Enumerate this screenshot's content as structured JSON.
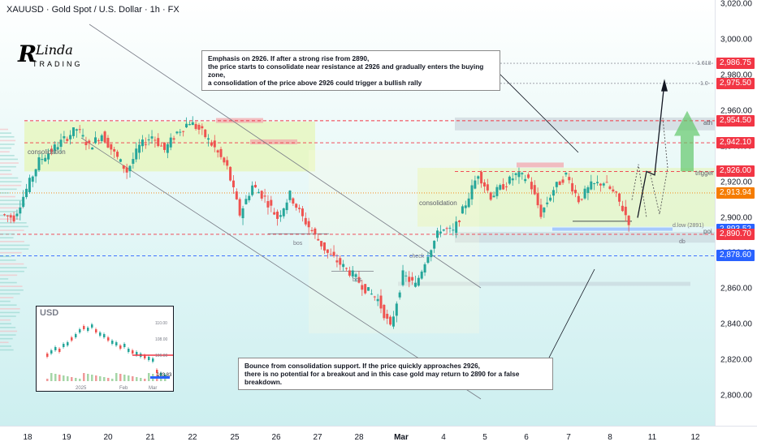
{
  "header": {
    "title": "XAUUSD · Gold Spot / U.S. Dollar · 1h · FX"
  },
  "logo": {
    "text_r": "R",
    "text_linda": "Linda",
    "text_trading": "TRADING"
  },
  "notes": {
    "top": [
      "Emphasis on 2926. If after a strong rise from 2890,",
      "the price starts to consolidate near resistance at 2926 and gradually enters the buying zone,",
      "a consolidation of the price above 2926 could trigger a bullish rally"
    ],
    "bottom": [
      "Bounce from consolidation support. If the price quickly approaches 2926,",
      "there is no potential for a breakout and in this case gold may return to 2890 for a false breakdown."
    ]
  },
  "annotations": {
    "consolidation_left": "consolidation",
    "consolidation_right": "consolidation",
    "bos1": "bos",
    "bos2": "bos",
    "check": "check",
    "fib_1618": "1.618",
    "fib_1": "1.0",
    "ath": "ath",
    "trigger": "trigger",
    "poi": "poi",
    "dlow": "d.low (2891)",
    "db": "db"
  },
  "price_badges": [
    {
      "value": "2,986.75",
      "price": 2986.75,
      "color": "#f23645"
    },
    {
      "value": "2,975.50",
      "price": 2975.5,
      "color": "#f23645"
    },
    {
      "value": "2,954.50",
      "price": 2954.5,
      "color": "#f23645"
    },
    {
      "value": "2,942.10",
      "price": 2942.1,
      "color": "#f23645"
    },
    {
      "value": "2,926.00",
      "price": 2926.0,
      "color": "#f23645"
    },
    {
      "value": "2,913.94",
      "price": 2913.94,
      "color": "#f57c00"
    },
    {
      "value": "2,893.52",
      "price": 2893.52,
      "color": "#2962ff"
    },
    {
      "value": "2,890.70",
      "price": 2890.7,
      "color": "#f23645"
    },
    {
      "value": "2,878.60",
      "price": 2878.6,
      "color": "#2962ff"
    }
  ],
  "inset": {
    "title": "USD",
    "last_value": "103.83",
    "x_labels": [
      "2025",
      "Feb",
      "Mar"
    ],
    "y_labels": [
      "110.00",
      "108.00",
      "106.00"
    ]
  },
  "chart_data": {
    "type": "candlestick",
    "symbol": "XAUUSD",
    "timeframe": "1h",
    "x_ticks": [
      "18",
      "19",
      "20",
      "21",
      "22",
      "25",
      "26",
      "27",
      "28",
      "Mar",
      "4",
      "5",
      "6",
      "7",
      "8",
      "11",
      "12"
    ],
    "y_ticks": [
      3020,
      3000,
      2980,
      2960,
      2940,
      2920,
      2900,
      2880,
      2860,
      2840,
      2820,
      2800
    ],
    "ylim": [
      2794,
      3022
    ],
    "price_path": [
      [
        0,
        2902
      ],
      [
        1,
        2900
      ],
      [
        2,
        2916
      ],
      [
        3,
        2932
      ],
      [
        4,
        2938
      ],
      [
        5,
        2944
      ],
      [
        6,
        2950
      ],
      [
        7,
        2940
      ],
      [
        8,
        2947
      ],
      [
        9,
        2936
      ],
      [
        10,
        2926
      ],
      [
        11,
        2940
      ],
      [
        12,
        2946
      ],
      [
        13,
        2938
      ],
      [
        14,
        2948
      ],
      [
        15,
        2954
      ],
      [
        16,
        2948
      ],
      [
        17,
        2939
      ],
      [
        18,
        2928
      ],
      [
        19,
        2902
      ],
      [
        20,
        2918
      ],
      [
        21,
        2911
      ],
      [
        22,
        2900
      ],
      [
        23,
        2913
      ],
      [
        24,
        2900
      ],
      [
        25,
        2890
      ],
      [
        26,
        2880
      ],
      [
        27,
        2874
      ],
      [
        28,
        2868
      ],
      [
        29,
        2860
      ],
      [
        30,
        2854
      ],
      [
        31,
        2838
      ],
      [
        32,
        2868
      ],
      [
        33,
        2862
      ],
      [
        34,
        2880
      ],
      [
        35,
        2894
      ],
      [
        36,
        2892
      ],
      [
        37,
        2908
      ],
      [
        38,
        2925
      ],
      [
        39,
        2912
      ],
      [
        40,
        2918
      ],
      [
        41,
        2924
      ],
      [
        42,
        2922
      ],
      [
        43,
        2902
      ],
      [
        44,
        2916
      ],
      [
        45,
        2924
      ],
      [
        46,
        2910
      ],
      [
        47,
        2918
      ],
      [
        48,
        2920
      ],
      [
        49,
        2912
      ],
      [
        50,
        2898
      ]
    ],
    "levels": [
      2986.75,
      2975.5,
      2954.5,
      2942.1,
      2926.0,
      2913.94,
      2893.52,
      2890.7,
      2878.6
    ]
  }
}
